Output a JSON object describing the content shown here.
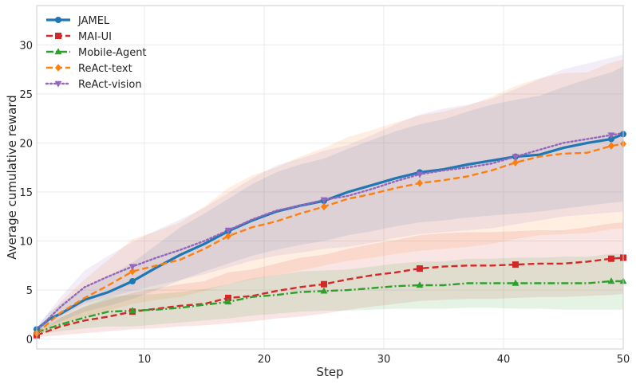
{
  "chart_data": {
    "type": "line",
    "xlabel": "Step",
    "ylabel": "Average cumulative reward",
    "xlim": [
      1,
      50
    ],
    "ylim": [
      -1,
      34
    ],
    "xticks": [
      10,
      20,
      30,
      40,
      50
    ],
    "yticks": [
      0,
      5,
      10,
      15,
      20,
      25,
      30
    ],
    "grid": true,
    "legend_position": "top-left",
    "series": [
      {
        "name": "JAMEL",
        "color": "#1f77b4",
        "marker": "circle",
        "linestyle": "solid",
        "x": [
          1,
          2,
          3,
          5,
          7,
          9,
          11,
          13,
          15,
          17,
          19,
          21,
          23,
          25,
          27,
          29,
          31,
          33,
          35,
          37,
          39,
          41,
          43,
          45,
          47,
          49,
          50
        ],
        "y": [
          1.0,
          2.0,
          2.6,
          4.0,
          4.8,
          5.9,
          7.3,
          8.6,
          9.7,
          11.0,
          12.1,
          13.0,
          13.6,
          14.1,
          15.0,
          15.7,
          16.4,
          17.0,
          17.3,
          17.8,
          18.2,
          18.6,
          18.8,
          19.5,
          20.0,
          20.4,
          20.9
        ],
        "lower": [
          0.8,
          1.3,
          1.8,
          2.8,
          3.4,
          4.1,
          5.0,
          6.0,
          6.9,
          7.7,
          8.5,
          9.1,
          9.6,
          10.0,
          10.6,
          11.0,
          11.5,
          11.9,
          12.1,
          12.4,
          12.6,
          12.8,
          13.0,
          13.3,
          13.6,
          13.9,
          14.0
        ],
        "upper": [
          1.2,
          2.7,
          3.6,
          5.3,
          6.4,
          7.8,
          9.6,
          11.4,
          12.8,
          14.3,
          15.8,
          17.0,
          17.8,
          18.4,
          19.4,
          20.3,
          21.2,
          21.9,
          22.4,
          23.2,
          23.9,
          24.4,
          24.8,
          25.7,
          26.5,
          27.2,
          27.8
        ],
        "marker_x": [
          1,
          9,
          17,
          25,
          33,
          41,
          49,
          50
        ]
      },
      {
        "name": "MAI-UI",
        "color": "#d62728",
        "marker": "square",
        "linestyle": "dashed",
        "x": [
          1,
          3,
          5,
          7,
          9,
          11,
          13,
          15,
          17,
          19,
          21,
          23,
          25,
          27,
          29,
          31,
          33,
          35,
          37,
          39,
          41,
          43,
          45,
          47,
          49,
          50
        ],
        "y": [
          0.4,
          1.3,
          1.9,
          2.3,
          2.8,
          3.1,
          3.4,
          3.6,
          4.2,
          4.4,
          4.9,
          5.3,
          5.6,
          6.1,
          6.5,
          6.8,
          7.2,
          7.4,
          7.5,
          7.5,
          7.6,
          7.7,
          7.7,
          7.9,
          8.2,
          8.3
        ],
        "lower": [
          0.2,
          0.4,
          0.6,
          0.8,
          1.0,
          1.1,
          1.3,
          1.4,
          1.6,
          1.8,
          2.1,
          2.3,
          2.6,
          3.0,
          3.3,
          3.6,
          3.9,
          4.0,
          4.1,
          4.1,
          4.2,
          4.3,
          4.3,
          4.4,
          4.5,
          4.6
        ],
        "upper": [
          0.6,
          2.2,
          3.3,
          4.0,
          4.7,
          5.2,
          5.6,
          5.9,
          6.8,
          7.1,
          7.7,
          8.3,
          8.6,
          9.2,
          9.7,
          10.1,
          10.6,
          10.8,
          10.9,
          10.9,
          11.0,
          11.1,
          11.1,
          11.4,
          11.8,
          11.9
        ],
        "marker_x": [
          1,
          9,
          17,
          25,
          33,
          41,
          49,
          50
        ]
      },
      {
        "name": "Mobile-Agent",
        "color": "#2ca02c",
        "marker": "triangle-up",
        "linestyle": "dashdot",
        "x": [
          1,
          3,
          5,
          7,
          9,
          11,
          13,
          15,
          17,
          19,
          21,
          23,
          25,
          27,
          29,
          31,
          33,
          35,
          37,
          39,
          41,
          43,
          45,
          47,
          49,
          50
        ],
        "y": [
          0.7,
          1.5,
          2.2,
          2.8,
          2.9,
          3.0,
          3.2,
          3.5,
          3.8,
          4.3,
          4.5,
          4.8,
          4.9,
          5.0,
          5.2,
          5.4,
          5.5,
          5.5,
          5.7,
          5.7,
          5.7,
          5.7,
          5.7,
          5.7,
          5.9,
          5.9
        ],
        "lower": [
          0.5,
          0.8,
          1.1,
          1.3,
          1.3,
          1.5,
          1.7,
          1.9,
          2.1,
          2.4,
          2.6,
          2.8,
          2.9,
          2.9,
          3.0,
          3.1,
          3.1,
          3.1,
          3.2,
          3.2,
          3.1,
          3.1,
          3.0,
          3.0,
          3.0,
          3.0
        ],
        "upper": [
          0.9,
          2.2,
          3.3,
          4.3,
          4.5,
          4.6,
          4.8,
          5.1,
          5.6,
          6.2,
          6.5,
          6.9,
          7.0,
          7.1,
          7.4,
          7.7,
          7.9,
          7.9,
          8.2,
          8.2,
          8.3,
          8.3,
          8.4,
          8.4,
          8.7,
          8.7
        ],
        "marker_x": [
          1,
          9,
          17,
          25,
          33,
          41,
          49,
          50
        ]
      },
      {
        "name": "ReAct-text",
        "color": "#ff7f0e",
        "marker": "diamond",
        "linestyle": "dashed",
        "x": [
          1,
          3,
          5,
          7,
          9,
          11,
          13,
          15,
          17,
          19,
          21,
          23,
          25,
          27,
          29,
          31,
          33,
          35,
          37,
          39,
          41,
          43,
          45,
          47,
          49,
          50
        ],
        "y": [
          0.6,
          2.7,
          4.2,
          5.5,
          6.9,
          7.5,
          8.1,
          9.2,
          10.5,
          11.4,
          12.0,
          12.8,
          13.5,
          14.3,
          14.8,
          15.4,
          15.9,
          16.2,
          16.6,
          17.2,
          18.0,
          18.6,
          18.9,
          19.0,
          19.7,
          19.9
        ],
        "lower": [
          0.4,
          1.6,
          2.3,
          2.9,
          3.6,
          4.0,
          4.3,
          4.9,
          5.6,
          6.1,
          6.5,
          7.0,
          7.5,
          8.0,
          8.3,
          8.7,
          9.0,
          9.2,
          9.4,
          9.7,
          10.2,
          10.6,
          10.7,
          10.8,
          11.2,
          11.3
        ],
        "upper": [
          0.8,
          3.8,
          6.1,
          8.1,
          10.2,
          11.0,
          11.9,
          13.5,
          15.4,
          16.7,
          17.5,
          18.6,
          19.5,
          20.6,
          21.3,
          22.1,
          22.8,
          23.2,
          23.8,
          24.7,
          25.8,
          26.6,
          27.1,
          27.2,
          28.2,
          28.5
        ],
        "marker_x": [
          1,
          9,
          17,
          25,
          33,
          41,
          49,
          50
        ]
      },
      {
        "name": "ReAct-vision",
        "color": "#9467bd",
        "marker": "triangle-down",
        "linestyle": "dotted",
        "x": [
          1,
          3,
          5,
          7,
          9,
          11,
          13,
          15,
          17,
          19,
          21,
          23,
          25,
          27,
          29,
          31,
          33,
          35,
          37,
          39,
          41,
          43,
          45,
          47,
          49,
          50
        ],
        "y": [
          0.9,
          3.3,
          5.3,
          6.4,
          7.4,
          8.3,
          9.1,
          10.0,
          11.1,
          12.2,
          13.1,
          13.6,
          14.2,
          14.6,
          15.3,
          16.1,
          16.8,
          17.2,
          17.5,
          17.9,
          18.6,
          19.3,
          20.0,
          20.4,
          20.8,
          21.0
        ],
        "lower": [
          0.7,
          2.3,
          3.6,
          4.3,
          4.9,
          5.5,
          6.0,
          6.6,
          7.3,
          8.0,
          8.5,
          8.8,
          9.2,
          9.4,
          9.8,
          10.3,
          10.7,
          10.9,
          11.1,
          11.3,
          11.7,
          12.1,
          12.5,
          12.7,
          12.9,
          13.0
        ],
        "upper": [
          1.1,
          4.3,
          7.0,
          8.5,
          9.9,
          11.1,
          12.2,
          13.4,
          14.9,
          16.4,
          17.7,
          18.4,
          19.2,
          19.8,
          20.8,
          21.9,
          22.9,
          23.5,
          23.9,
          24.5,
          25.5,
          26.5,
          27.5,
          28.1,
          28.7,
          29.0
        ],
        "marker_x": [
          9,
          17,
          25,
          33,
          41,
          49
        ]
      }
    ]
  }
}
